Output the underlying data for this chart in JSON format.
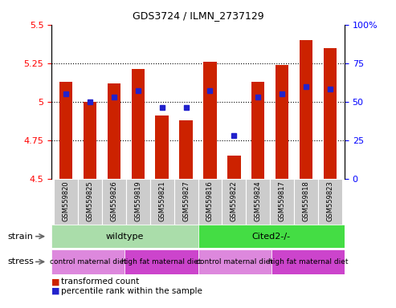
{
  "title": "GDS3724 / ILMN_2737129",
  "samples": [
    "GSM559820",
    "GSM559825",
    "GSM559826",
    "GSM559819",
    "GSM559821",
    "GSM559827",
    "GSM559816",
    "GSM559822",
    "GSM559824",
    "GSM559817",
    "GSM559818",
    "GSM559823"
  ],
  "transformed_count": [
    5.13,
    5.0,
    5.12,
    5.21,
    4.91,
    4.88,
    5.26,
    4.65,
    5.13,
    5.24,
    5.4,
    5.35
  ],
  "percentile_rank": [
    55,
    50,
    53,
    57,
    46,
    46,
    57,
    28,
    53,
    55,
    60,
    58
  ],
  "ylim_left": [
    4.5,
    5.5
  ],
  "ylim_right": [
    0,
    100
  ],
  "yticks_left": [
    4.5,
    4.75,
    5.0,
    5.25,
    5.5
  ],
  "yticks_right": [
    0,
    25,
    50,
    75,
    100
  ],
  "ytick_labels_left": [
    "4.5",
    "4.75",
    "5",
    "5.25",
    "5.5"
  ],
  "ytick_labels_right": [
    "0",
    "25",
    "50",
    "75",
    "100%"
  ],
  "hlines": [
    4.75,
    5.0,
    5.25
  ],
  "bar_color": "#cc2200",
  "dot_color": "#2222cc",
  "bar_width": 0.55,
  "strain_groups": [
    {
      "label": "wildtype",
      "start": 0,
      "end": 6,
      "color": "#aaddaa"
    },
    {
      "label": "Cited2-/-",
      "start": 6,
      "end": 12,
      "color": "#44dd44"
    }
  ],
  "stress_groups": [
    {
      "label": "control maternal diet",
      "start": 0,
      "end": 3,
      "color": "#dd88dd"
    },
    {
      "label": "high fat maternal diet",
      "start": 3,
      "end": 6,
      "color": "#cc44cc"
    },
    {
      "label": "control maternal diet",
      "start": 6,
      "end": 9,
      "color": "#dd88dd"
    },
    {
      "label": "high fat maternal diet",
      "start": 9,
      "end": 12,
      "color": "#cc44cc"
    }
  ],
  "legend_items": [
    {
      "label": "transformed count",
      "color": "#cc2200",
      "marker": "s"
    },
    {
      "label": "percentile rank within the sample",
      "color": "#2222cc",
      "marker": "s"
    }
  ],
  "strain_label": "strain",
  "stress_label": "stress",
  "tick_bg_color": "#cccccc",
  "tick_sep_color": "#ffffff"
}
